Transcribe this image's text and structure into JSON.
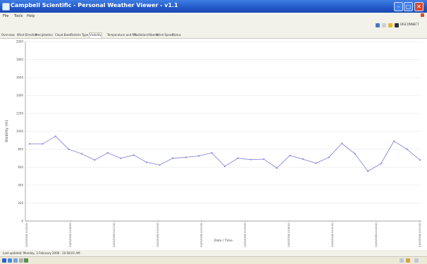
{
  "window": {
    "title": "Campbell Scientific - Personal Weather Viewer - v1.1"
  },
  "menu": {
    "items": [
      "File",
      "Tools",
      "Help"
    ]
  },
  "toolbar": {
    "right_label": "DISCONNECT"
  },
  "tabs": {
    "items": [
      "Overview",
      "Wind Direction",
      "Precipitation",
      "Cloud Base",
      "Particle Type",
      "Visibility",
      "Temperature and RH",
      "Radiation/Albedo",
      "Wind Speed",
      "Status"
    ],
    "active_index": 5
  },
  "chart_data": {
    "type": "line",
    "ylabel": "Visibility (m)",
    "xlabel": "Date / Time",
    "ylim": [
      0,
      2000
    ],
    "yticks": [
      0,
      200,
      400,
      600,
      800,
      1000,
      1200,
      1400,
      1600,
      1800,
      2000
    ],
    "x_tick_labels": [
      "01/03/2006 10:00:00",
      "01/03/2006 10:06:00",
      "01/03/2006 10:12:00",
      "01/03/2006 10:18:00",
      "01/03/2006 10:24:00",
      "01/03/2006 10:30:00",
      "01/03/2006 10:36:00",
      "01/03/2006 10:42:00",
      "01/03/2006 10:48:00",
      "01/03/2006 10:54:00"
    ],
    "series": [
      {
        "values": [
          860,
          860,
          945,
          800,
          750,
          680,
          760,
          700,
          735,
          655,
          625,
          700,
          710,
          725,
          760,
          610,
          700,
          685,
          690,
          590,
          730,
          690,
          645,
          710,
          865,
          750,
          555,
          640,
          890,
          800,
          680
        ]
      }
    ],
    "line_color": "#8888dd"
  },
  "status": {
    "text": "Last updated: Monday, 3 February 2006 - 10:58:01 AM"
  },
  "colors": {
    "titlebar": "#2358c8",
    "chrome": "#f2f1ea",
    "line": "#8888dd"
  }
}
